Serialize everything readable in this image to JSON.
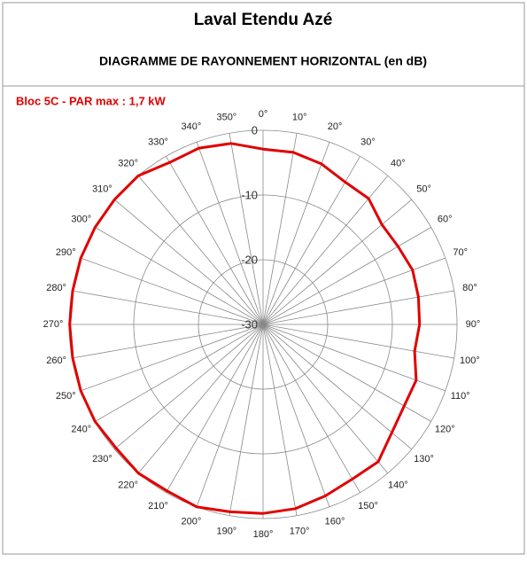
{
  "chart_data": {
    "type": "radar",
    "title": "Laval Etendu Azé",
    "subtitle": "DIAGRAMME DE RAYONNEMENT HORIZONTAL  (en dB)",
    "categories": [
      "0°",
      "10°",
      "20°",
      "30°",
      "40°",
      "50°",
      "60°",
      "70°",
      "80°",
      "90°",
      "100°",
      "110°",
      "120°",
      "130°",
      "140°",
      "150°",
      "160°",
      "170°",
      "180°",
      "190°",
      "200°",
      "210°",
      "220°",
      "230°",
      "240°",
      "250°",
      "260°",
      "270°",
      "280°",
      "290°",
      "300°",
      "310°",
      "320°",
      "330°",
      "340°",
      "350°"
    ],
    "series": [
      {
        "name": "Bloc 5C - PAR max : 1,7 kW",
        "color": "#e00000",
        "values": [
          -2.9,
          -3,
          -3.6,
          -4.6,
          -4.6,
          -6,
          -5.9,
          -5.4,
          -5.6,
          -5.8,
          -6.2,
          -4.8,
          -4.8,
          -4,
          -2.3,
          -2.4,
          -1.8,
          -1.1,
          -0.8,
          -0.6,
          0,
          -0.3,
          0,
          -0.3,
          0,
          0,
          -0.1,
          -0.1,
          -0.1,
          0,
          0,
          0,
          0,
          -1.1,
          -1,
          -1.6
        ]
      }
    ],
    "ylim": [
      -30,
      0
    ],
    "yticks": [
      -30,
      -20,
      -10,
      0
    ],
    "grid": true
  }
}
